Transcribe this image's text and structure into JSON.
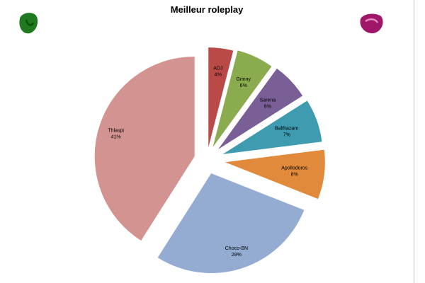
{
  "chart_data": {
    "type": "pie",
    "title": "Meilleur roleplay",
    "slices": [
      {
        "label": "ADJ",
        "value": 4,
        "percent_label": "4%",
        "color": "#b94a48"
      },
      {
        "label": "Grinny",
        "value": 6,
        "percent_label": "6%",
        "color": "#8aab4e"
      },
      {
        "label": "Sarena",
        "value": 6,
        "percent_label": "6%",
        "color": "#7a5e96"
      },
      {
        "label": "Balthazarn",
        "value": 7,
        "percent_label": "7%",
        "color": "#3e9bb0"
      },
      {
        "label": "Apollodoros",
        "value": 8,
        "percent_label": "8%",
        "color": "#e18a3b"
      },
      {
        "label": "Choco-BN",
        "value": 28,
        "percent_label": "28%",
        "color": "#94abd2"
      },
      {
        "label": "Thlaspi",
        "value": 41,
        "percent_label": "41%",
        "color": "#d39391"
      }
    ],
    "exploded": true,
    "legend": "none"
  },
  "decorations": {
    "left_icon": {
      "name": "green-blob-icon",
      "color": "#1f7a1f"
    },
    "right_icon": {
      "name": "magenta-blob-icon",
      "color": "#a0176a"
    }
  }
}
